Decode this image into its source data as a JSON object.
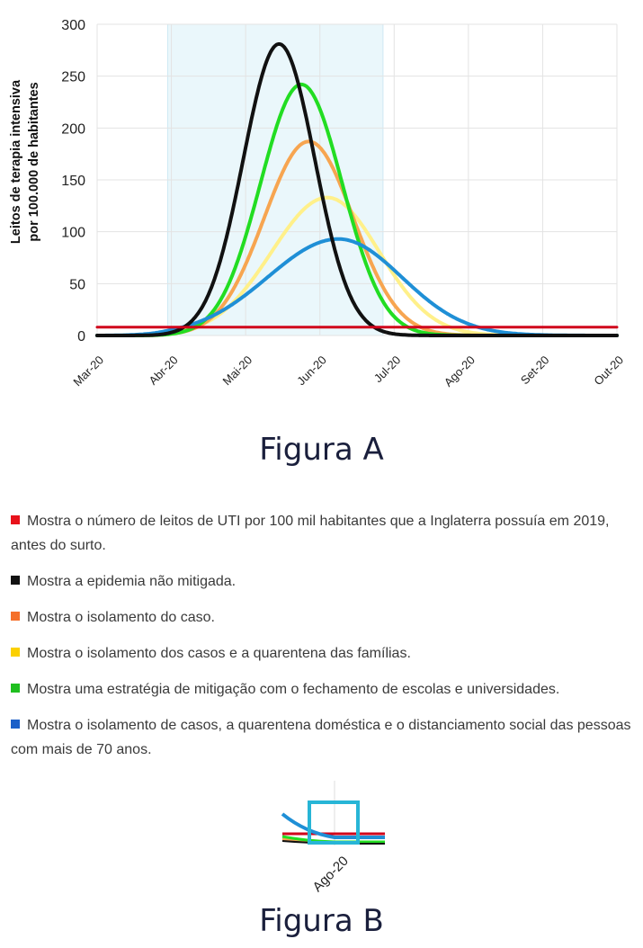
{
  "chart_data": [
    {
      "type": "line",
      "title": "Figura A",
      "ylabel_lines": [
        "Leitos de terapia intensiva",
        "por 100.000 de habitantes"
      ],
      "x_ticks": [
        "Mar-20",
        "Abr-20",
        "Mai-20",
        "Jun-20",
        "Jul-20",
        "Ago-20",
        "Set-20",
        "Out-20"
      ],
      "y_ticks": [
        0,
        50,
        100,
        150,
        200,
        250,
        300
      ],
      "xlim": [
        0,
        7
      ],
      "ylim": [
        0,
        300
      ],
      "grid": true,
      "shaded_period": [
        0.95,
        3.85
      ],
      "series": [
        {
          "color": "#d0021b",
          "x": [
            0,
            7
          ],
          "y": [
            8,
            8
          ]
        },
        {
          "color": "#111111",
          "peak_x": 2.45,
          "peak_y": 281,
          "sigma_left": 0.48,
          "sigma_right": 0.48,
          "x": [
            0,
            1,
            1.5,
            2,
            2.45,
            3,
            3.5,
            4,
            4.5,
            5,
            6,
            7
          ],
          "y": [
            0,
            2,
            40,
            170,
            281,
            160,
            40,
            6,
            0,
            0,
            0,
            0
          ]
        },
        {
          "color": "#22dd22",
          "peak_x": 2.75,
          "peak_y": 242,
          "sigma_left": 0.55,
          "sigma_right": 0.55,
          "x": [
            0,
            1,
            1.5,
            2,
            2.75,
            3,
            3.5,
            4,
            4.5,
            5,
            6,
            7
          ],
          "y": [
            0,
            3,
            30,
            110,
            242,
            220,
            100,
            25,
            3,
            0,
            0,
            0
          ]
        },
        {
          "color": "#f7a550",
          "peak_x": 2.85,
          "peak_y": 187,
          "sigma_left": 0.6,
          "sigma_right": 0.6,
          "x": [
            0,
            1,
            1.5,
            2,
            2.85,
            3.5,
            4,
            4.5,
            5,
            6,
            7
          ],
          "y": [
            0,
            3,
            20,
            70,
            187,
            95,
            30,
            5,
            0,
            0,
            0
          ]
        },
        {
          "color": "#fff08a",
          "peak_x": 3.1,
          "peak_y": 133,
          "sigma_left": 0.75,
          "sigma_right": 0.7,
          "x": [
            0,
            1,
            1.5,
            2,
            3.1,
            3.5,
            4,
            4.5,
            5,
            6,
            7
          ],
          "y": [
            0,
            3,
            15,
            45,
            133,
            115,
            65,
            22,
            5,
            3,
            2
          ]
        },
        {
          "color": "#1f8fd6",
          "peak_x": 3.25,
          "peak_y": 93,
          "sigma_left": 0.95,
          "sigma_right": 0.85,
          "x": [
            0,
            1,
            1.5,
            2,
            3.25,
            4,
            4.5,
            5,
            5.5,
            6,
            6.5,
            7
          ],
          "y": [
            0,
            3,
            10,
            28,
            93,
            55,
            25,
            6,
            4,
            4,
            3,
            2
          ]
        }
      ]
    },
    {
      "type": "line",
      "title": "Figura B",
      "x_ticks": [
        "Ago-20"
      ],
      "note": "zoomed detail around Ago-20"
    }
  ],
  "legend": [
    {
      "color": "#e8121b",
      "text": "Mostra o número de leitos de UTI por 100 mil habitantes que a Inglaterra possuía em 2019, antes do surto."
    },
    {
      "color": "#111111",
      "text": "Mostra a epidemia não mitigada."
    },
    {
      "color": "#f5702a",
      "text": "Mostra o isolamento do caso."
    },
    {
      "color": "#fbd000",
      "text": "Mostra o isolamento dos casos e a quarentena das famílias."
    },
    {
      "color": "#1fbf1f",
      "text": "Mostra uma estratégia de mitigação com o fechamento de escolas e universidades."
    },
    {
      "color": "#1a5fc8",
      "text": "Mostra o isolamento de casos, a quarentena doméstica e o distanciamento social das pessoas com mais de 70 anos."
    }
  ],
  "figure_b": {
    "highlight_color": "#27b5d6"
  }
}
